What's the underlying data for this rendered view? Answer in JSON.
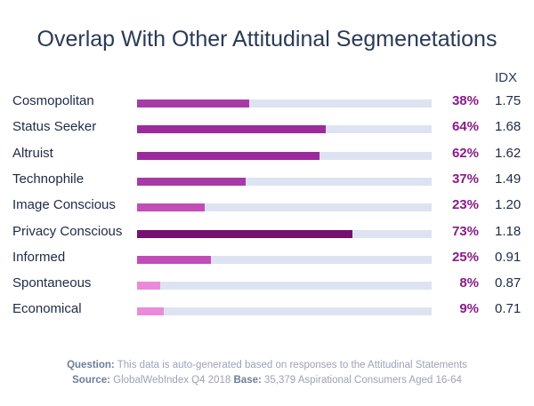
{
  "chart_data": {
    "type": "bar",
    "orientation": "horizontal",
    "title": "Overlap With Other Attitudinal Segmenetations",
    "idx_header": "IDX",
    "xlim": [
      0,
      100
    ],
    "categories": [
      "Cosmopolitan",
      "Status Seeker",
      "Altruist",
      "Technophile",
      "Image Conscious",
      "Privacy Conscious",
      "Informed",
      "Spontaneous",
      "Economical"
    ],
    "values": [
      38,
      64,
      62,
      37,
      23,
      73,
      25,
      8,
      9
    ],
    "value_labels": [
      "38%",
      "64%",
      "62%",
      "37%",
      "23%",
      "73%",
      "25%",
      "8%",
      "9%"
    ],
    "idx": [
      "1.75",
      "1.68",
      "1.62",
      "1.49",
      "1.20",
      "1.18",
      "0.91",
      "0.87",
      "0.71"
    ],
    "colors": [
      "#a83aa8",
      "#9c2a9c",
      "#9c2a9c",
      "#a83aa8",
      "#c24cb8",
      "#75116f",
      "#c24cb8",
      "#eb8ad9",
      "#eb8ad9"
    ]
  },
  "colors": {
    "track": "#dde3f1",
    "value_text": "#8a1a8a",
    "title_text": "#2b3a55"
  },
  "footer": {
    "question_label": "Question:",
    "question_text": "This data is auto-generated based on responses to the Attitudinal Statements",
    "source_label": "Source:",
    "source_text": "GlobalWebIndex Q4 2018",
    "base_label": "Base:",
    "base_text": "35,379 Aspirational Consumers Aged 16-64"
  }
}
